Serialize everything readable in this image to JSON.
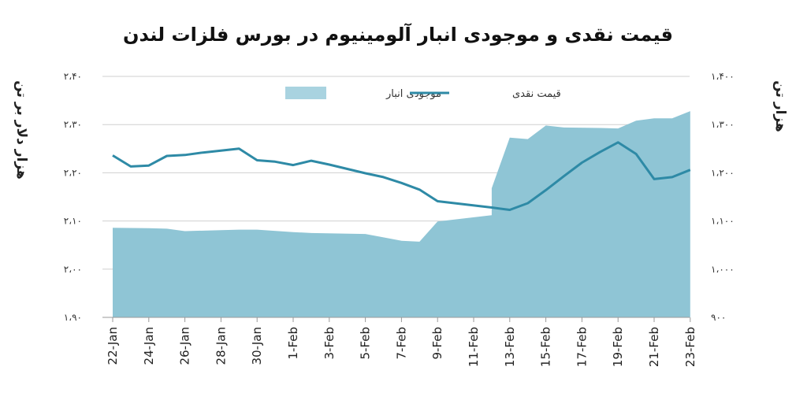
{
  "chart_data": {
    "type": "line",
    "title": "قیمت نقدی و موجودی انبار آلومینیوم در بورس فلزات لندن",
    "ylabel_left": "هزار دلار بر تن",
    "ylabel_right": "هزار تن",
    "y_left_ticks": [
      "۲،۴۰",
      "۲،۳۰",
      "۲،۲۰",
      "۲،۱۰",
      "۲،۰۰",
      "۱،۹۰"
    ],
    "y_right_ticks": [
      "۱،۴۰۰",
      "۱،۳۰۰",
      "۱،۲۰۰",
      "۱،۱۰۰",
      "۱،۰۰۰",
      "۹۰۰"
    ],
    "ylim_left": [
      1.9,
      2.4
    ],
    "ylim_right": [
      900,
      1400
    ],
    "x_tick_labels": [
      "22-Jan",
      "24-Jan",
      "26-Jan",
      "28-Jan",
      "30-Jan",
      "1-Feb",
      "3-Feb",
      "5-Feb",
      "7-Feb",
      "9-Feb",
      "11-Feb",
      "13-Feb",
      "15-Feb",
      "17-Feb",
      "19-Feb",
      "21-Feb",
      "23-Feb"
    ],
    "grid": true,
    "legend_position": "top",
    "series": [
      {
        "name": "موجودی انبار",
        "type": "area",
        "axis": "right",
        "color": "#8fc5d5",
        "x": [
          "22-Jan",
          "24-Jan",
          "25-Jan",
          "26-Jan",
          "28-Jan",
          "29-Jan",
          "30-Jan",
          "1-Feb",
          "2-Feb",
          "5-Feb",
          "6-Feb",
          "7-Feb",
          "8-Feb",
          "9-Feb",
          "12-Feb",
          "12-Feb",
          "13-Feb",
          "14-Feb",
          "15-Feb",
          "16-Feb",
          "18-Feb",
          "19-Feb",
          "20-Feb",
          "21-Feb",
          "22-Feb",
          "23-Feb"
        ],
        "values": [
          1086,
          1085,
          1084,
          1079,
          1081,
          1082,
          1082,
          1077,
          1075,
          1073,
          1066,
          1059,
          1057,
          1099,
          1112,
          1168,
          1273,
          1270,
          1298,
          1294,
          1293,
          1292,
          1308,
          1313,
          1313,
          1328
        ]
      },
      {
        "name": "قیمت نقدی",
        "type": "line",
        "axis": "left",
        "color": "#2e8aa6",
        "x": [
          "22-Jan",
          "23-Jan",
          "24-Jan",
          "25-Jan",
          "26-Jan",
          "27-Jan",
          "28-Jan",
          "29-Jan",
          "30-Jan",
          "31-Jan",
          "1-Feb",
          "2-Feb",
          "3-Feb",
          "4-Feb",
          "5-Feb",
          "6-Feb",
          "7-Feb",
          "8-Feb",
          "9-Feb",
          "12-Feb",
          "13-Feb",
          "14-Feb",
          "15-Feb",
          "16-Feb",
          "17-Feb",
          "18-Feb",
          "19-Feb",
          "20-Feb",
          "21-Feb",
          "22-Feb",
          "23-Feb"
        ],
        "values": [
          2.236,
          2.213,
          2.215,
          2.235,
          2.237,
          2.242,
          2.246,
          2.25,
          2.226,
          2.223,
          2.216,
          2.225,
          2.217,
          2.208,
          2.199,
          2.191,
          2.179,
          2.165,
          2.141,
          2.128,
          2.123,
          2.137,
          2.164,
          2.193,
          2.221,
          2.243,
          2.263,
          2.239,
          2.187,
          2.191,
          2.206
        ]
      }
    ]
  }
}
